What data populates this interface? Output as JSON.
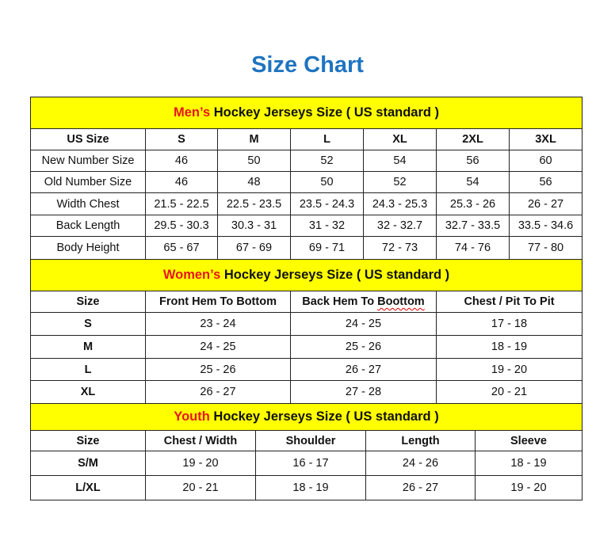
{
  "title": "Size Chart",
  "colors": {
    "title": "#1f74c0",
    "banner_bg": "#ffff00",
    "accent": "#e8141c"
  },
  "men": {
    "banner_accent": "Men’s",
    "banner_rest": " Hockey Jerseys Size ( US standard )",
    "headers": [
      "US Size",
      "S",
      "M",
      "L",
      "XL",
      "2XL",
      "3XL"
    ],
    "rows": [
      [
        "New Number Size",
        "46",
        "50",
        "52",
        "54",
        "56",
        "60"
      ],
      [
        "Old Number Size",
        "46",
        "48",
        "50",
        "52",
        "54",
        "56"
      ],
      [
        "Width Chest",
        "21.5 - 22.5",
        "22.5 - 23.5",
        "23.5 - 24.3",
        "24.3 - 25.3",
        "25.3 - 26",
        "26 - 27"
      ],
      [
        "Back Length",
        "29.5 - 30.3",
        "30.3 - 31",
        "31 - 32",
        "32 - 32.7",
        "32.7 - 33.5",
        "33.5 - 34.6"
      ],
      [
        "Body Height",
        "65 - 67",
        "67 - 69",
        "69 - 71",
        "72 - 73",
        "74 - 76",
        "77 - 80"
      ]
    ]
  },
  "women": {
    "banner_accent": "Women’s",
    "banner_rest": " Hockey Jerseys Size ( US standard )",
    "headers": [
      "Size",
      "Front Hem To Bottom",
      "Back Hem To Boottom",
      "Chest / Pit To Pit"
    ],
    "rows": [
      [
        "S",
        "23 - 24",
        "24 - 25",
        "17 - 18"
      ],
      [
        "M",
        "24 - 25",
        "25 - 26",
        "18 - 19"
      ],
      [
        "L",
        "25 - 26",
        "26 - 27",
        "19 - 20"
      ],
      [
        "XL",
        "26 - 27",
        "27 - 28",
        "20 - 21"
      ]
    ]
  },
  "youth": {
    "banner_accent": "Youth",
    "banner_rest": " Hockey Jerseys Size ( US standard )",
    "headers": [
      "Size",
      "Chest / Width",
      "Shoulder",
      "Length",
      "Sleeve"
    ],
    "rows": [
      [
        "S/M",
        "19 - 20",
        "16 - 17",
        "24 - 26",
        "18 - 19"
      ],
      [
        "L/XL",
        "20 - 21",
        "18 - 19",
        "26 - 27",
        "19 - 20"
      ]
    ]
  }
}
